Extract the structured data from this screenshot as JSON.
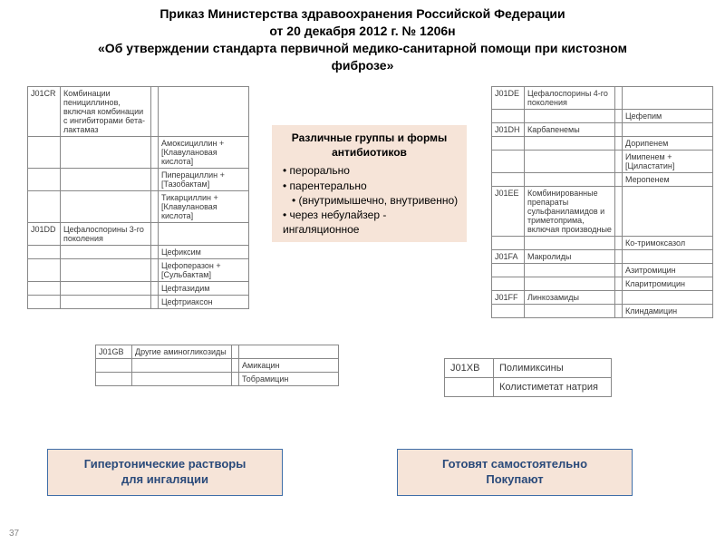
{
  "header": {
    "line1": "Приказ Министерства здравоохранения Российской Федерации",
    "line2": "от 20 декабря 2012 г. № 1206н",
    "line3": "«Об утверждении стандарта первичной медико-санитарной помощи при кистозном",
    "line4": "фиброзе»"
  },
  "callout_center": {
    "title": "Различные группы и формы антибиотиков",
    "items": [
      "перорально",
      "парентерально",
      "(внутримышечно, внутривенно)",
      "через небулайзер - ингаляционное"
    ]
  },
  "box_left": {
    "line1": "Гипертонические растворы",
    "line2": "для ингаляции"
  },
  "box_right": {
    "line1": "Готовят самостоятельно",
    "line2": "Покупают"
  },
  "table_left": {
    "column_widths": [
      "36px",
      "100px",
      "8px",
      "100px"
    ],
    "rows": [
      [
        "J01CR",
        "Комбинации пенициллинов, включая комбинации с ингибиторами бета-лактамаз",
        "",
        ""
      ],
      [
        "",
        "",
        "",
        "Амоксициллин + [Клавулановая кислота]"
      ],
      [
        "",
        "",
        "",
        "Пиперациллин + [Тазобактам]"
      ],
      [
        "",
        "",
        "",
        "Тикарциллин + [Клавулановая кислота]"
      ],
      [
        "J01DD",
        "Цефалоспорины 3-го поколения",
        "",
        ""
      ],
      [
        "",
        "",
        "",
        "Цефиксим"
      ],
      [
        "",
        "",
        "",
        "Цефоперазон + [Сульбактам]"
      ],
      [
        "",
        "",
        "",
        "Цефтазидим"
      ],
      [
        "",
        "",
        "",
        "Цефтриаксон"
      ]
    ]
  },
  "table_right": {
    "column_widths": [
      "36px",
      "100px",
      "8px",
      "100px"
    ],
    "rows": [
      [
        "J01DE",
        "Цефалоспорины 4-го поколения",
        "",
        ""
      ],
      [
        "",
        "",
        "",
        "Цефепим"
      ],
      [
        "J01DH",
        "Карбапенемы",
        "",
        ""
      ],
      [
        "",
        "",
        "",
        "Дорипенем"
      ],
      [
        "",
        "",
        "",
        "Имипенем + [Циластатин]"
      ],
      [
        "",
        "",
        "",
        "Меропенем"
      ],
      [
        "J01EE",
        "Комбинированные препараты сульфаниламидов и триметоприма, включая производные",
        "",
        ""
      ],
      [
        "",
        "",
        "",
        "Ко-тримоксазол"
      ],
      [
        "J01FA",
        "Макролиды",
        "",
        ""
      ],
      [
        "",
        "",
        "",
        "Азитромицин"
      ],
      [
        "",
        "",
        "",
        "Кларитромицин"
      ],
      [
        "J01FF",
        "Линкозамиды",
        "",
        ""
      ],
      [
        "",
        "",
        "",
        "Клиндамицин"
      ]
    ]
  },
  "table_mid": {
    "column_widths": [
      "40px",
      "110px",
      "8px",
      "110px"
    ],
    "rows": [
      [
        "J01GB",
        "Другие аминогликозиды",
        "",
        ""
      ],
      [
        "",
        "",
        "",
        "Амикацин"
      ],
      [
        "",
        "",
        "",
        "Тобрамицин"
      ]
    ]
  },
  "table_dual": {
    "column_widths": [
      "54px",
      "130px"
    ],
    "rows": [
      [
        "J01XB",
        "Полимиксины"
      ],
      [
        "",
        "Колистиметат натрия"
      ]
    ]
  },
  "page_num": "37",
  "colors": {
    "callout_bg": "#f6e4d8",
    "border": "#888888",
    "box_border": "#3f6ea8",
    "box_text": "#2a4a7a"
  }
}
